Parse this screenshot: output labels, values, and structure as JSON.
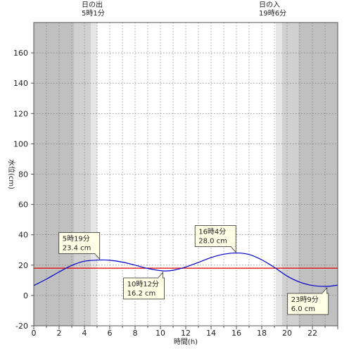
{
  "sun": {
    "sunrise_title": "日の出",
    "sunrise_time": "5時1分",
    "sunset_title": "日の入",
    "sunset_time": "19時6分"
  },
  "colors": {
    "night": "#c0c0c0",
    "twilight_outer": "#d0d0d0",
    "twilight_inner": "#e6e6e6",
    "day": "#ffffff",
    "tide_line": "#0000cc",
    "reference_line": "#e00000",
    "callout_bg": "#ffffe6",
    "grid": "#666666"
  },
  "chart_data": {
    "type": "line",
    "title": "",
    "xlabel": "時間(h)",
    "ylabel": "水位(cm)",
    "xlim": [
      0,
      24
    ],
    "ylim": [
      -20,
      180
    ],
    "x_ticks": [
      0,
      2,
      4,
      6,
      8,
      10,
      12,
      14,
      16,
      18,
      20,
      22
    ],
    "y_ticks": [
      -20,
      0,
      20,
      40,
      60,
      80,
      100,
      120,
      140,
      160
    ],
    "grid": true,
    "reference_line_y": 18,
    "bands": [
      {
        "from": 0,
        "to": 3.2,
        "kind": "night"
      },
      {
        "from": 3.2,
        "to": 4.5,
        "kind": "twilight_outer"
      },
      {
        "from": 4.5,
        "to": 5.017,
        "kind": "twilight_inner"
      },
      {
        "from": 5.017,
        "to": 19.1,
        "kind": "day"
      },
      {
        "from": 19.1,
        "to": 19.6,
        "kind": "twilight_inner"
      },
      {
        "from": 19.6,
        "to": 20.9,
        "kind": "twilight_outer"
      },
      {
        "from": 20.9,
        "to": 24,
        "kind": "night"
      }
    ],
    "series": [
      {
        "name": "",
        "x": [
          0,
          1,
          2,
          3,
          4,
          5.317,
          6,
          7,
          8,
          9,
          10.2,
          11,
          12,
          13,
          14,
          15,
          16.067,
          17,
          18,
          19,
          20,
          21,
          22,
          23.15,
          24
        ],
        "y": [
          6.5,
          10.8,
          15.5,
          19.8,
          22.6,
          23.4,
          23.2,
          22.0,
          20.0,
          17.8,
          16.2,
          16.6,
          18.8,
          21.8,
          25.0,
          27.2,
          28.0,
          27.0,
          23.5,
          18.5,
          12.8,
          8.8,
          6.6,
          6.0,
          6.8
        ]
      }
    ],
    "annotations": [
      {
        "time": "5時19分",
        "value": "23.4 cm",
        "x": 5.317,
        "y": 23.4,
        "side": "above"
      },
      {
        "time": "10時12分",
        "value": "16.2 cm",
        "x": 10.2,
        "y": 16.2,
        "side": "below"
      },
      {
        "time": "16時4分",
        "value": "28.0 cm",
        "x": 16.067,
        "y": 28.0,
        "side": "above"
      },
      {
        "time": "23時9分",
        "value": "6.0 cm",
        "x": 23.15,
        "y": 6.0,
        "side": "below"
      }
    ]
  }
}
